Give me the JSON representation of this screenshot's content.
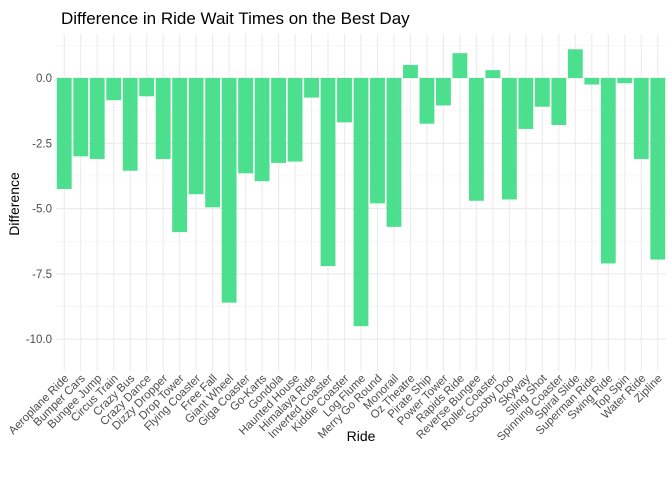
{
  "chart_data": {
    "type": "bar",
    "title": "Difference in Ride Wait Times on the Best Day",
    "xlabel": "Ride",
    "ylabel": "Difference",
    "ylim": [
      -10.2,
      1.6
    ],
    "yticks": [
      0.0,
      -2.5,
      -5.0,
      -7.5,
      -10.0
    ],
    "ytick_labels": [
      "0.0",
      "-2.5",
      "-5.0",
      "-7.5",
      "-10.0"
    ],
    "grid": true,
    "bar_color": "#3ddc84",
    "categories": [
      "Aeroplane Ride",
      "Bumper Cars",
      "Bungee Jump",
      "Circus Train",
      "Crazy Bus",
      "Crazy Dance",
      "Dizzy Dropper",
      "Drop Tower",
      "Flying Coaster",
      "Free Fall",
      "Giant Wheel",
      "Giga Coaster",
      "Go-Karts",
      "Gondola",
      "Haunted House",
      "Himalaya Ride",
      "Inverted Coaster",
      "Kiddie Coaster",
      "Log Flume",
      "Merry Go Round",
      "Monorail",
      "Oz Theatre",
      "Pirate Ship",
      "Power Tower",
      "Rapids Ride",
      "Reverse Bungee",
      "Roller Coaster",
      "Scooby Doo",
      "Skyway",
      "Sling Shot",
      "Spinning Coaster",
      "Spiral Slide",
      "Superman Ride",
      "Swing Ride",
      "Top Spin",
      "Water Ride",
      "Zipline"
    ],
    "values": [
      -4.25,
      -3.0,
      -3.1,
      -0.85,
      -3.55,
      -0.7,
      -3.1,
      -5.9,
      -4.45,
      -4.95,
      -8.6,
      -3.65,
      -3.95,
      -3.25,
      -3.2,
      -0.75,
      -7.2,
      -1.7,
      -9.5,
      -4.8,
      -5.7,
      0.5,
      -1.75,
      -1.05,
      0.95,
      -4.7,
      0.3,
      -4.65,
      -1.95,
      -1.1,
      -1.8,
      1.1,
      -0.25,
      -7.1,
      -0.2,
      -3.1,
      -6.95
    ]
  }
}
